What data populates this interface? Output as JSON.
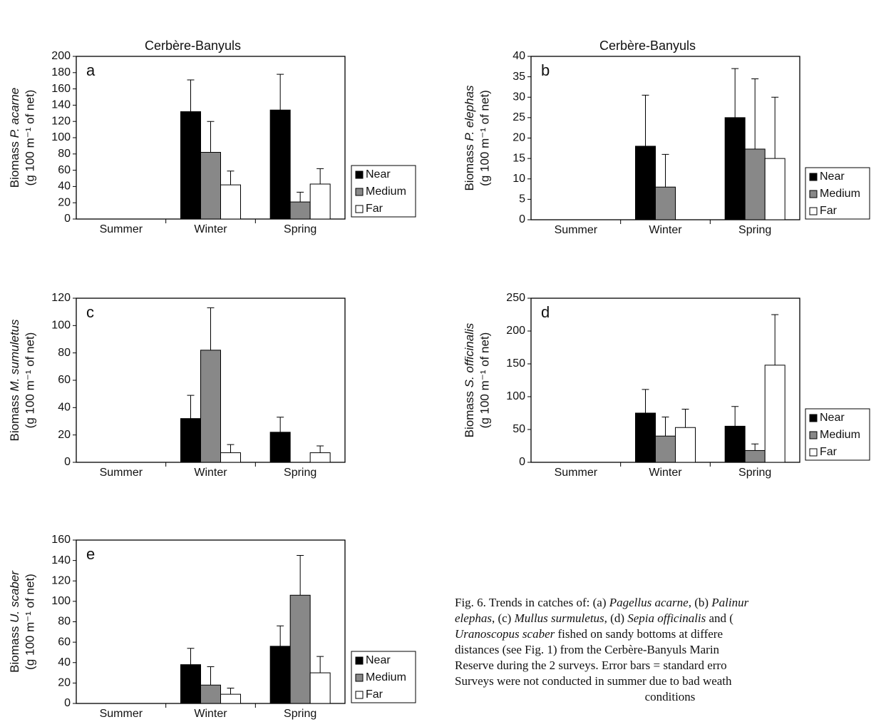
{
  "chart_data": [
    {
      "type": "bar",
      "title": "Cerbère-Banyuls",
      "panel": "a",
      "ylabel": {
        "text": "Biomass",
        "species": "P. acarne",
        "unit": "(g 100 m⁻¹ of net)"
      },
      "categories": [
        "Summer",
        "Winter",
        "Spring"
      ],
      "series": [
        {
          "name": "Near",
          "color": "#000000",
          "values": [
            null,
            132,
            134
          ],
          "errors": [
            null,
            39,
            44
          ]
        },
        {
          "name": "Medium",
          "color": "#888888",
          "values": [
            null,
            82,
            21
          ],
          "errors": [
            null,
            38,
            12
          ]
        },
        {
          "name": "Far",
          "color": "#ffffff",
          "values": [
            null,
            42,
            43
          ],
          "errors": [
            null,
            17,
            19
          ]
        }
      ],
      "ylim": [
        0,
        200
      ],
      "yticks": [
        0,
        20,
        40,
        60,
        80,
        100,
        120,
        140,
        160,
        180,
        200
      ],
      "legend": true
    },
    {
      "type": "bar",
      "title": "Cerbère-Banyuls",
      "panel": "b",
      "ylabel": {
        "text": "Biomass",
        "species": "P. elephas",
        "unit": "(g 100 m⁻¹ of net)"
      },
      "categories": [
        "Summer",
        "Winter",
        "Spring"
      ],
      "series": [
        {
          "name": "Near",
          "color": "#000000",
          "values": [
            null,
            18,
            25
          ],
          "errors": [
            null,
            12.5,
            12
          ]
        },
        {
          "name": "Medium",
          "color": "#888888",
          "values": [
            null,
            8,
            17.3
          ],
          "errors": [
            null,
            8,
            17.2
          ]
        },
        {
          "name": "Far",
          "color": "#ffffff",
          "values": [
            null,
            null,
            15
          ],
          "errors": [
            null,
            null,
            15
          ]
        }
      ],
      "ylim": [
        0,
        40
      ],
      "yticks": [
        0,
        5,
        10,
        15,
        20,
        25,
        30,
        35,
        40
      ],
      "legend": true
    },
    {
      "type": "bar",
      "panel": "c",
      "ylabel": {
        "text": "Biomass",
        "species": "M. sumuletus",
        "unit": "(g 100 m⁻¹ of net)"
      },
      "categories": [
        "Summer",
        "Winter",
        "Spring"
      ],
      "series": [
        {
          "name": "Near",
          "color": "#000000",
          "values": [
            null,
            32,
            22
          ],
          "errors": [
            null,
            17,
            11
          ]
        },
        {
          "name": "Medium",
          "color": "#888888",
          "values": [
            null,
            82,
            null
          ],
          "errors": [
            null,
            31,
            null
          ]
        },
        {
          "name": "Far",
          "color": "#ffffff",
          "values": [
            null,
            7,
            7
          ],
          "errors": [
            null,
            6,
            5
          ]
        }
      ],
      "ylim": [
        0,
        120
      ],
      "yticks": [
        0,
        20,
        40,
        60,
        80,
        100,
        120
      ],
      "legend": false
    },
    {
      "type": "bar",
      "panel": "d",
      "ylabel": {
        "text": "Biomass",
        "species": "S. officinalis",
        "unit": "(g 100 m⁻¹ of net)"
      },
      "categories": [
        "Summer",
        "Winter",
        "Spring"
      ],
      "series": [
        {
          "name": "Near",
          "color": "#000000",
          "values": [
            null,
            75,
            55
          ],
          "errors": [
            null,
            36,
            30
          ]
        },
        {
          "name": "Medium",
          "color": "#888888",
          "values": [
            null,
            40,
            18
          ],
          "errors": [
            null,
            29,
            10
          ]
        },
        {
          "name": "Far",
          "color": "#ffffff",
          "values": [
            null,
            53,
            148
          ],
          "errors": [
            null,
            28,
            77
          ]
        }
      ],
      "ylim": [
        0,
        250
      ],
      "yticks": [
        0,
        50,
        100,
        150,
        200,
        250
      ],
      "legend": true
    },
    {
      "type": "bar",
      "panel": "e",
      "ylabel": {
        "text": "Biomass",
        "species": "U. scaber",
        "unit": "(g 100 m⁻¹ of net)"
      },
      "categories": [
        "Summer",
        "Winter",
        "Spring"
      ],
      "series": [
        {
          "name": "Near",
          "color": "#000000",
          "values": [
            null,
            38,
            56
          ],
          "errors": [
            null,
            16,
            20
          ]
        },
        {
          "name": "Medium",
          "color": "#888888",
          "values": [
            null,
            18,
            106
          ],
          "errors": [
            null,
            18,
            39
          ]
        },
        {
          "name": "Far",
          "color": "#ffffff",
          "values": [
            null,
            9,
            30
          ],
          "errors": [
            null,
            6,
            16
          ]
        }
      ],
      "ylim": [
        0,
        160
      ],
      "yticks": [
        0,
        20,
        40,
        60,
        80,
        100,
        120,
        140,
        160
      ],
      "legend": true
    }
  ],
  "caption": [
    [
      {
        "text": "Fig. 6. Trends in catches of: (a) "
      },
      {
        "text": "Pagellus acarne",
        "italic": true
      },
      {
        "text": ", (b) "
      },
      {
        "text": "Palinur",
        "italic": true
      }
    ],
    [
      {
        "text": "elephas",
        "italic": true
      },
      {
        "text": ", (c) "
      },
      {
        "text": "Mullus surmuletus",
        "italic": true
      },
      {
        "text": ", (d) "
      },
      {
        "text": "Sepia officinalis",
        "italic": true
      },
      {
        "text": " and ("
      }
    ],
    [
      {
        "text": "Uranoscopus scaber",
        "italic": true
      },
      {
        "text": " fished on sandy bottoms at differe"
      }
    ],
    [
      {
        "text": "distances (see Fig. 1) from the Cerbère-Banyuls Marin"
      }
    ],
    [
      {
        "text": "Reserve during the 2 surveys. Error bars = standard erro"
      }
    ],
    [
      {
        "text": "Surveys were not conducted in summer due to bad weath"
      }
    ],
    [
      {
        "text": "conditions"
      }
    ]
  ]
}
